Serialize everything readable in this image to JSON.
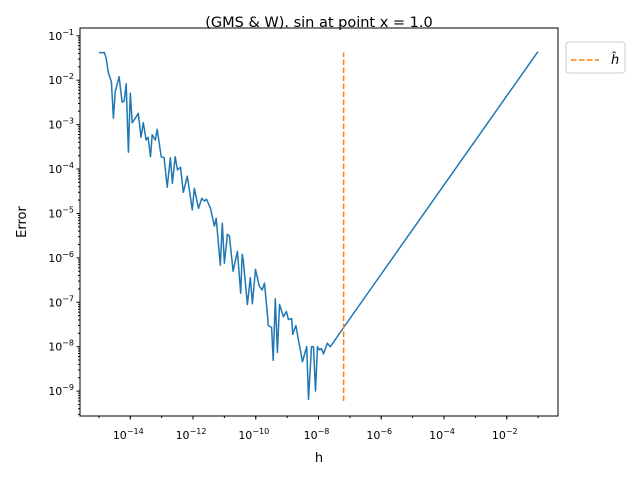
{
  "chart_data": {
    "type": "line",
    "title": "(GMS & W). sin at point x = 1.0",
    "xlabel": "h",
    "ylabel": "Error",
    "xscale": "log",
    "yscale": "log",
    "xlim": [
      2.5e-16,
      0.43
    ],
    "ylim": [
      2.75e-10,
      0.15
    ],
    "grid": false,
    "legend_placement": "outside-top-right",
    "x_ticks": [
      {
        "exp": -14,
        "label": "10",
        "sup": "−14"
      },
      {
        "exp": -12,
        "label": "10",
        "sup": "−12"
      },
      {
        "exp": -10,
        "label": "10",
        "sup": "−10"
      },
      {
        "exp": -8,
        "label": "10",
        "sup": "−8"
      },
      {
        "exp": -6,
        "label": "10",
        "sup": "−6"
      },
      {
        "exp": -4,
        "label": "10",
        "sup": "−4"
      },
      {
        "exp": -2,
        "label": "10",
        "sup": "−2"
      }
    ],
    "y_ticks": [
      {
        "exp": -1,
        "label": "10",
        "sup": "−1"
      },
      {
        "exp": -2,
        "label": "10",
        "sup": "−2"
      },
      {
        "exp": -3,
        "label": "10",
        "sup": "−3"
      },
      {
        "exp": -4,
        "label": "10",
        "sup": "−4"
      },
      {
        "exp": -5,
        "label": "10",
        "sup": "−5"
      },
      {
        "exp": -6,
        "label": "10",
        "sup": "−6"
      },
      {
        "exp": -7,
        "label": "10",
        "sup": "−7"
      },
      {
        "exp": -8,
        "label": "10",
        "sup": "−8"
      },
      {
        "exp": -9,
        "label": "10",
        "sup": "−9"
      }
    ],
    "series": [
      {
        "color": "#1f77b4",
        "style": "solid",
        "x": [
          1e-15,
          1.5e-15,
          1.7e-15,
          2e-15,
          2.5e-15,
          2.9e-15,
          3.3e-15,
          4.4e-15,
          5.5e-15,
          6.4e-15,
          7.4e-15,
          8.7e-15,
          1e-14,
          1.15e-14,
          1.45e-14,
          1.8e-14,
          2.2e-14,
          2.6e-14,
          3.2e-14,
          3.7e-14,
          4.4e-14,
          5e-14,
          6.3e-14,
          7.2e-14,
          9.7e-14,
          1.2e-13,
          1.5e-13,
          1.9e-13,
          2.2e-13,
          2.7e-13,
          3.2e-13,
          4e-13,
          4.9e-13,
          6.6e-13,
          9.5e-13,
          1.1e-12,
          1.5e-12,
          1.9e-12,
          2.3e-12,
          2.7e-12,
          3.6e-12,
          4.8e-12,
          5.5e-12,
          7.4e-12,
          8.6e-12,
          1e-11,
          1.25e-11,
          1.45e-11,
          1.9e-11,
          2.6e-11,
          3.3e-11,
          3.7e-11,
          4e-11,
          5.4e-11,
          6.7e-11,
          7.8e-11,
          9.8e-11,
          1.3e-10,
          1.6e-10,
          1.9e-10,
          2.4e-10,
          2.5e-10,
          3.2e-10,
          3.6e-10,
          4.2e-10,
          4.9e-10,
          5.7e-10,
          7.6e-10,
          9.5e-10,
          1.1e-09,
          1.4e-09,
          1.5e-09,
          1.9e-09,
          2.3e-09,
          3.1e-09,
          4.2e-09,
          4.8e-09,
          6e-09,
          6.9e-09,
          8e-09,
          9.3e-09,
          1.07e-08,
          1.25e-08,
          1.45e-08,
          1.9e-08,
          2.4e-08,
          6.3e-08,
          0.098
        ],
        "y": [
          0.042,
          0.042,
          0.032,
          0.015,
          0.0091,
          0.0014,
          0.0055,
          0.012,
          0.0032,
          0.0034,
          0.0083,
          0.00024,
          0.0051,
          0.0011,
          0.0014,
          0.0018,
          0.00052,
          0.0011,
          0.00045,
          0.00052,
          0.00019,
          0.00059,
          0.00045,
          0.00079,
          0.00019,
          0.00018,
          3.9e-05,
          0.00018,
          4.8e-05,
          0.00019,
          9.5e-05,
          0.00011,
          3e-05,
          6.9e-05,
          1.2e-05,
          3.7e-05,
          1.3e-05,
          2.2e-05,
          1.9e-05,
          2.1e-05,
          1.3e-05,
          5.2e-06,
          7.8e-06,
          6.8e-07,
          6e-06,
          7.6e-07,
          3.4e-06,
          3.1e-06,
          5e-07,
          1.4e-06,
          1.6e-07,
          1.2e-06,
          8.7e-07,
          8.9e-08,
          3.6e-07,
          9.3e-08,
          5.5e-07,
          2.3e-07,
          1.9e-07,
          2.7e-07,
          4.5e-08,
          3e-08,
          2.7e-08,
          4.9e-09,
          1.2e-07,
          7.4e-09,
          8.9e-08,
          4.7e-08,
          6.2e-08,
          4.1e-08,
          4.3e-08,
          1.9e-08,
          3e-08,
          1.4e-08,
          4.6e-09,
          1e-08,
          6.5e-10,
          1e-08,
          1e-08,
          1e-09,
          1e-08,
          8.5e-09,
          9e-09,
          6.9e-09,
          1.2e-08,
          1e-08,
          2.7e-08,
          0.044
        ]
      },
      {
        "name": "ĥ",
        "color": "#ff7f0e",
        "style": "dashed",
        "x": [
          6.3e-08,
          6.3e-08
        ],
        "y": [
          6e-10,
          0.042
        ]
      }
    ]
  }
}
